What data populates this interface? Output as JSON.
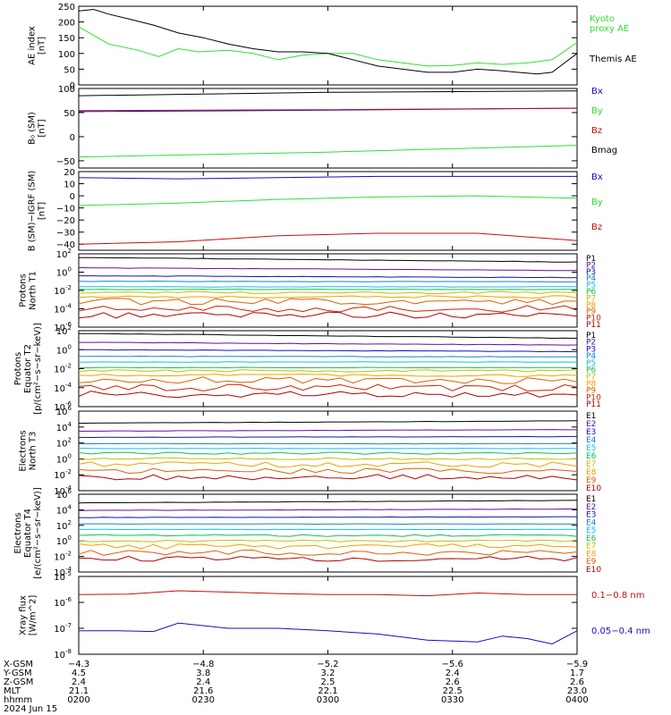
{
  "colors": {
    "black": "#000000",
    "green": "#2fe02f",
    "blue": "#1010c0",
    "red": "#c01010",
    "P": [
      "#000000",
      "#6010a0",
      "#1010c0",
      "#1080e0",
      "#10c0e0",
      "#10c050",
      "#c0c000",
      "#f0a000",
      "#e06000",
      "#d02000",
      "#b00000"
    ],
    "E": [
      "#000000",
      "#6010a0",
      "#1010c0",
      "#1080e0",
      "#10c0e0",
      "#10c050",
      "#c0c000",
      "#f0a000",
      "#e06000",
      "#b00000"
    ]
  },
  "chart_data": [
    {
      "type": "line",
      "ylabel": [
        "AE index",
        "[nT]"
      ],
      "yticks": [
        "250",
        "200",
        "150",
        "100",
        "50",
        "0"
      ],
      "ylim": [
        0,
        250
      ],
      "legend": [
        "Kyoto",
        "proxy AE",
        "Themis AE"
      ],
      "series": [
        {
          "name": "Kyoto proxy AE",
          "color": "green",
          "x": [
            0,
            0.06,
            0.12,
            0.16,
            0.2,
            0.24,
            0.3,
            0.35,
            0.4,
            0.45,
            0.5,
            0.55,
            0.6,
            0.65,
            0.7,
            0.75,
            0.8,
            0.85,
            0.9,
            0.95,
            1.0
          ],
          "values": [
            185,
            130,
            110,
            90,
            115,
            105,
            110,
            100,
            80,
            95,
            100,
            100,
            80,
            70,
            60,
            62,
            70,
            65,
            70,
            80,
            135
          ]
        },
        {
          "name": "Themis AE",
          "color": "black",
          "x": [
            0,
            0.03,
            0.06,
            0.1,
            0.15,
            0.2,
            0.25,
            0.3,
            0.35,
            0.4,
            0.45,
            0.5,
            0.55,
            0.6,
            0.65,
            0.7,
            0.75,
            0.8,
            0.85,
            0.88,
            0.92,
            0.95,
            1.0
          ],
          "values": [
            235,
            240,
            225,
            210,
            190,
            165,
            150,
            130,
            115,
            105,
            105,
            100,
            80,
            60,
            50,
            40,
            40,
            50,
            45,
            40,
            35,
            40,
            100
          ]
        }
      ]
    },
    {
      "type": "line",
      "ylabel": [
        "B₀ (SM)",
        "[nT]"
      ],
      "yticks": [
        "100",
        "50",
        "0",
        "−50"
      ],
      "ylim": [
        -65,
        100
      ],
      "legend": [
        "Bx",
        "By",
        "Bz",
        "Bmag"
      ],
      "series": [
        {
          "name": "Bmag",
          "color": "black",
          "x": [
            0,
            0.5,
            1
          ],
          "values": [
            85,
            92,
            95
          ]
        },
        {
          "name": "Bx",
          "color": "blue",
          "x": [
            0,
            0.5,
            1
          ],
          "values": [
            52,
            55,
            59
          ]
        },
        {
          "name": "Bz",
          "color": "red",
          "x": [
            0,
            0.5,
            1
          ],
          "values": [
            54,
            56,
            59
          ]
        },
        {
          "name": "By",
          "color": "green",
          "x": [
            0,
            0.5,
            1
          ],
          "values": [
            -42,
            -32,
            -18
          ]
        }
      ]
    },
    {
      "type": "line",
      "ylabel": [
        "B (SM)−IGRF (SM)",
        "[nT]"
      ],
      "yticks": [
        "20",
        "10",
        "0",
        "−10",
        "−20",
        "−30",
        "−40"
      ],
      "ylim": [
        -45,
        20
      ],
      "legend": [
        "Bx",
        "By",
        "Bz"
      ],
      "series": [
        {
          "name": "Bx",
          "color": "blue",
          "x": [
            0,
            0.2,
            0.4,
            0.6,
            0.8,
            1
          ],
          "values": [
            15,
            14,
            15,
            16,
            16,
            16
          ]
        },
        {
          "name": "By",
          "color": "green",
          "x": [
            0,
            0.2,
            0.4,
            0.6,
            0.8,
            1
          ],
          "values": [
            -8,
            -6,
            -3,
            -1,
            0,
            -2
          ]
        },
        {
          "name": "Bz",
          "color": "red",
          "x": [
            0,
            0.2,
            0.4,
            0.6,
            0.8,
            1
          ],
          "values": [
            -40,
            -38,
            -33,
            -31,
            -31,
            -37
          ]
        }
      ]
    },
    {
      "type": "line",
      "log": true,
      "ylabel": [
        "Protons",
        "North T1"
      ],
      "ymin_exp": -6,
      "ymax_exp": 2,
      "tick_step": 2,
      "legend": [
        "P1",
        "P2",
        "P3",
        "P4",
        "P5",
        "P6",
        "P7",
        "P8",
        "P9",
        "P10",
        "P11"
      ],
      "levels": [
        40,
        3.0,
        0.4,
        0.1,
        0.025,
        0.013,
        0.006,
        0.002,
        0.0006,
        0.0001,
        2e-05
      ],
      "slopes": [
        -0.5,
        -0.3,
        -0.2,
        -0.05,
        0,
        0,
        0,
        0,
        0,
        0,
        0
      ]
    },
    {
      "type": "line",
      "log": true,
      "ylabel": [
        "Protons",
        "Equator T2",
        "[p/(cm²−s−sr−keV)]"
      ],
      "ymin_exp": -6,
      "ymax_exp": 2,
      "tick_step": 2,
      "legend": [
        "P1",
        "P2",
        "P3",
        "P4",
        "P5",
        "P6",
        "P7",
        "P8",
        "P9",
        "P10",
        "P11"
      ],
      "levels": [
        50,
        6.0,
        1.0,
        0.2,
        0.05,
        0.013,
        0.006,
        0.002,
        0.0006,
        0.0001,
        2e-05
      ],
      "slopes": [
        -0.5,
        -0.3,
        -0.2,
        -0.05,
        0,
        0,
        0,
        0,
        0,
        0,
        0
      ]
    },
    {
      "type": "line",
      "log": true,
      "ylabel": [
        "Electrons",
        "North T3"
      ],
      "ymin_exp": -4,
      "ymax_exp": 6,
      "tick_step": 2,
      "legend": [
        "E1",
        "E2",
        "E3",
        "E4",
        "E5",
        "E6",
        "E7",
        "E8",
        "E9",
        "E10"
      ],
      "levels": [
        30000,
        3000,
        500,
        80,
        20,
        5,
        1,
        0.2,
        0.03,
        0.005
      ],
      "slopes": [
        0.3,
        0.2,
        0.1,
        0,
        0,
        0,
        0,
        0,
        0,
        0
      ]
    },
    {
      "type": "line",
      "log": true,
      "ylabel": [
        "Electrons",
        "Equator T4",
        "[e/(cm²−s−sr−keV)]"
      ],
      "ymin_exp": -4,
      "ymax_exp": 6,
      "tick_step": 2,
      "legend": [
        "E1",
        "E2",
        "E3",
        "E4",
        "E5",
        "E6",
        "E7",
        "E8",
        "E9",
        "E10"
      ],
      "levels": [
        80000,
        8000,
        1000,
        150,
        30,
        5,
        1,
        0.2,
        0.03,
        0.005
      ],
      "slopes": [
        0.3,
        0.2,
        0.1,
        0,
        0,
        0,
        0,
        0,
        0,
        0
      ]
    },
    {
      "type": "line",
      "log": true,
      "ylabel": [
        "Xray flux",
        "[W/m^2]"
      ],
      "ymin_exp": -8,
      "ymax_exp": -5,
      "tick_step": 1,
      "legend": [
        "0.1−0.8 nm",
        "0.05−0.4 nm"
      ],
      "series": [
        {
          "name": "0.1−0.8 nm",
          "color": "red",
          "x": [
            0,
            0.1,
            0.2,
            0.3,
            0.4,
            0.5,
            0.6,
            0.7,
            0.8,
            0.9,
            1.0
          ],
          "values": [
            2e-06,
            2.1e-06,
            2.8e-06,
            2.5e-06,
            2.2e-06,
            2e-06,
            2e-06,
            1.8e-06,
            2.3e-06,
            2e-06,
            2e-06
          ]
        },
        {
          "name": "0.05−0.4 nm",
          "color": "blue",
          "x": [
            0,
            0.08,
            0.15,
            0.2,
            0.3,
            0.4,
            0.5,
            0.6,
            0.7,
            0.8,
            0.85,
            0.9,
            0.95,
            1.0
          ],
          "values": [
            8e-08,
            8e-08,
            7.5e-08,
            1.6e-07,
            1e-07,
            1e-07,
            8e-08,
            6e-08,
            3.5e-08,
            3e-08,
            5e-08,
            4e-08,
            2.5e-08,
            8e-08
          ]
        }
      ]
    }
  ],
  "xaxis": {
    "row_labels": [
      "X-GSM",
      "Y-GSM",
      "Z-GSM",
      "MLT",
      "hhmm"
    ],
    "date": "2024 Jun 15",
    "columns": [
      [
        "−4.3",
        "4.5",
        "2.4",
        "21.1",
        "0200"
      ],
      [
        "−4.8",
        "3.8",
        "2.4",
        "21.6",
        "0230"
      ],
      [
        "−5.2",
        "3.2",
        "2.5",
        "22.1",
        "0300"
      ],
      [
        "−5.6",
        "2.4",
        "2.6",
        "22.5",
        "0330"
      ],
      [
        "−5.9",
        "1.7",
        "2.6",
        "23.0",
        "0400"
      ]
    ]
  }
}
